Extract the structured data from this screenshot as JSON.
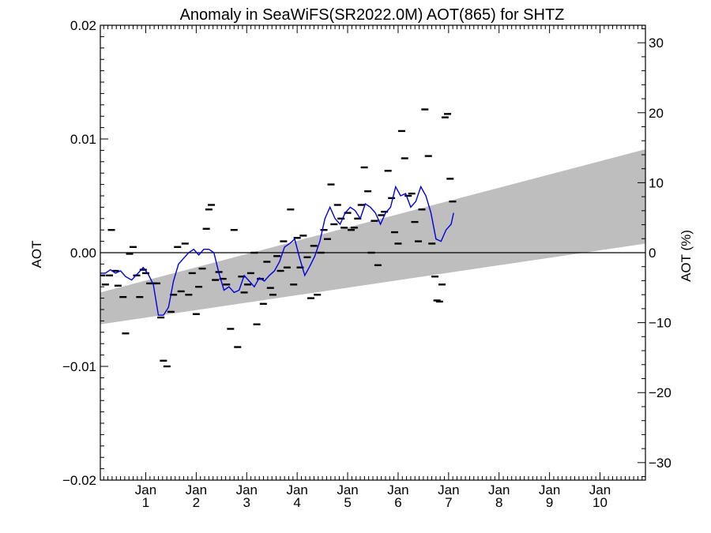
{
  "chart_data": {
    "type": "scatter",
    "title": "Anomaly in SeaWiFS(SR2022.0M) AOT(865) for SHTZ",
    "ylabel": "AOT",
    "ylabel_right": "AOT (%)",
    "xlabel": "",
    "xlim": [
      0.1,
      10.9
    ],
    "ylim": [
      -0.02,
      0.02
    ],
    "ylim_right": [
      -32.5,
      32.5
    ],
    "yticks": [
      -0.02,
      -0.01,
      0.0,
      0.01,
      0.02
    ],
    "ytick_labels": [
      "−0.02",
      "−0.01",
      "0.00",
      "0.01",
      "0.02"
    ],
    "yticks_right": [
      -30,
      -20,
      -10,
      0,
      10,
      20,
      30
    ],
    "ytick_labels_right": [
      "−30",
      "−20",
      "−10",
      "0",
      "10",
      "20",
      "30"
    ],
    "xticks": [
      {
        "x": 1,
        "line1": "Jan",
        "line2": "1"
      },
      {
        "x": 2,
        "line1": "Jan",
        "line2": "2"
      },
      {
        "x": 3,
        "line1": "Jan",
        "line2": "3"
      },
      {
        "x": 4,
        "line1": "Jan",
        "line2": "4"
      },
      {
        "x": 5,
        "line1": "Jan",
        "line2": "5"
      },
      {
        "x": 6,
        "line1": "Jan",
        "line2": "6"
      },
      {
        "x": 7,
        "line1": "Jan",
        "line2": "7"
      },
      {
        "x": 8,
        "line1": "Jan",
        "line2": "8"
      },
      {
        "x": 9,
        "line1": "Jan",
        "line2": "9"
      },
      {
        "x": 10,
        "line1": "Jan",
        "line2": "10"
      }
    ],
    "zero_line": 0.0,
    "band": {
      "color": "#bebebe",
      "x": [
        0.1,
        10.9
      ],
      "lower": [
        -0.0063,
        0.0008
      ],
      "upper": [
        -0.0035,
        0.0091
      ]
    },
    "series": [
      {
        "style": "markers",
        "color": "#000000",
        "points": [
          [
            0.13,
            -0.002
          ],
          [
            0.2,
            -0.0028
          ],
          [
            0.28,
            -0.002
          ],
          [
            0.32,
            0.002
          ],
          [
            0.4,
            -0.0016
          ],
          [
            0.45,
            -0.0029
          ],
          [
            0.55,
            -0.0039
          ],
          [
            0.6,
            -0.0071
          ],
          [
            0.68,
            -0.0001
          ],
          [
            0.75,
            0.0005
          ],
          [
            0.82,
            -0.002
          ],
          [
            0.88,
            -0.0039
          ],
          [
            0.95,
            -0.0015
          ],
          [
            1.0,
            -0.0018
          ],
          [
            1.08,
            -0.0027
          ],
          [
            1.15,
            -0.0027
          ],
          [
            1.22,
            -0.0027
          ],
          [
            1.3,
            -0.0057
          ],
          [
            1.35,
            -0.0095
          ],
          [
            1.42,
            -0.01
          ],
          [
            1.5,
            -0.0052
          ],
          [
            1.55,
            -0.0037
          ],
          [
            1.63,
            0.0005
          ],
          [
            1.7,
            -0.0034
          ],
          [
            1.78,
            0.0008
          ],
          [
            1.85,
            -0.0037
          ],
          [
            1.92,
            -0.0018
          ],
          [
            2.0,
            -0.0054
          ],
          [
            2.05,
            -0.003
          ],
          [
            2.12,
            -0.0014
          ],
          [
            2.2,
            0.0021
          ],
          [
            2.25,
            0.0038
          ],
          [
            2.3,
            0.0042
          ],
          [
            2.38,
            -0.0024
          ],
          [
            2.45,
            -0.0017
          ],
          [
            2.53,
            -0.0023
          ],
          [
            2.6,
            -0.0028
          ],
          [
            2.68,
            -0.0067
          ],
          [
            2.75,
            0.002
          ],
          [
            2.82,
            -0.0083
          ],
          [
            2.9,
            -0.0021
          ],
          [
            2.95,
            -0.0035
          ],
          [
            3.02,
            -0.0028
          ],
          [
            3.08,
            -0.0018
          ],
          [
            3.15,
            0.0
          ],
          [
            3.2,
            -0.0063
          ],
          [
            3.27,
            -0.0023
          ],
          [
            3.33,
            -0.0045
          ],
          [
            3.4,
            -0.0008
          ],
          [
            3.47,
            -0.0031
          ],
          [
            3.52,
            -0.0037
          ],
          [
            3.6,
            -0.0003
          ],
          [
            3.67,
            -0.0016
          ],
          [
            3.73,
            0.001
          ],
          [
            3.8,
            -0.0013
          ],
          [
            3.87,
            0.0038
          ],
          [
            3.93,
            -0.0028
          ],
          [
            4.0,
            0.0013
          ],
          [
            4.06,
            -0.0013
          ],
          [
            4.12,
            0.0015
          ],
          [
            4.2,
            -0.0004
          ],
          [
            4.27,
            -0.004
          ],
          [
            4.33,
            0.0006
          ],
          [
            4.4,
            -0.0037
          ],
          [
            4.47,
            0.0
          ],
          [
            4.53,
            0.002
          ],
          [
            4.6,
            0.0012
          ],
          [
            4.67,
            0.006
          ],
          [
            4.73,
            0.0025
          ],
          [
            4.8,
            0.0042
          ],
          [
            4.87,
            0.003
          ],
          [
            4.93,
            0.0022
          ],
          [
            5.0,
            0.0035
          ],
          [
            5.07,
            0.002
          ],
          [
            5.13,
            0.0022
          ],
          [
            5.2,
            0.003
          ],
          [
            5.27,
            0.0042
          ],
          [
            5.33,
            0.0075
          ],
          [
            5.4,
            0.0054
          ],
          [
            5.47,
            0.0
          ],
          [
            5.53,
            0.0028
          ],
          [
            5.6,
            -0.0011
          ],
          [
            5.67,
            0.0033
          ],
          [
            5.73,
            0.0036
          ],
          [
            5.8,
            0.0072
          ],
          [
            5.87,
            0.0048
          ],
          [
            5.93,
            0.0018
          ],
          [
            6.0,
            0.0008
          ],
          [
            6.07,
            0.0107
          ],
          [
            6.13,
            0.0083
          ],
          [
            6.2,
            0.005
          ],
          [
            6.27,
            0.0052
          ],
          [
            6.33,
            0.0027
          ],
          [
            6.4,
            0.001
          ],
          [
            6.47,
            0.0038
          ],
          [
            6.53,
            0.0126
          ],
          [
            6.6,
            0.0085
          ],
          [
            6.67,
            0.0008
          ],
          [
            6.73,
            -0.0021
          ],
          [
            6.77,
            -0.0042
          ],
          [
            6.82,
            -0.0043
          ],
          [
            6.87,
            -0.0028
          ],
          [
            6.93,
            0.0119
          ],
          [
            6.98,
            0.0122
          ],
          [
            7.03,
            0.0065
          ],
          [
            7.08,
            0.0045
          ]
        ]
      },
      {
        "style": "line",
        "color": "#0000dd",
        "points": [
          [
            0.1,
            -0.0018
          ],
          [
            0.2,
            -0.0018
          ],
          [
            0.3,
            -0.0015
          ],
          [
            0.4,
            -0.0018
          ],
          [
            0.5,
            -0.0016
          ],
          [
            0.6,
            -0.0021
          ],
          [
            0.72,
            -0.0024
          ],
          [
            0.85,
            -0.0018
          ],
          [
            0.95,
            -0.0013
          ],
          [
            1.05,
            -0.0019
          ],
          [
            1.15,
            -0.0028
          ],
          [
            1.25,
            -0.0055
          ],
          [
            1.35,
            -0.0055
          ],
          [
            1.45,
            -0.0048
          ],
          [
            1.55,
            -0.0025
          ],
          [
            1.65,
            -0.001
          ],
          [
            1.75,
            -0.0005
          ],
          [
            1.85,
            0.0
          ],
          [
            1.95,
            0.0003
          ],
          [
            2.05,
            -0.0002
          ],
          [
            2.15,
            0.0003
          ],
          [
            2.25,
            0.0003
          ],
          [
            2.35,
            0.0
          ],
          [
            2.45,
            -0.0018
          ],
          [
            2.55,
            -0.0033
          ],
          [
            2.65,
            -0.003
          ],
          [
            2.75,
            -0.0035
          ],
          [
            2.85,
            -0.0033
          ],
          [
            2.95,
            -0.002
          ],
          [
            3.05,
            -0.0025
          ],
          [
            3.15,
            -0.003
          ],
          [
            3.25,
            -0.0022
          ],
          [
            3.35,
            -0.0025
          ],
          [
            3.45,
            -0.002
          ],
          [
            3.55,
            -0.0016
          ],
          [
            3.65,
            -0.0008
          ],
          [
            3.75,
            0.0005
          ],
          [
            3.85,
            0.0008
          ],
          [
            3.95,
            0.0012
          ],
          [
            4.05,
            -0.0005
          ],
          [
            4.15,
            -0.002
          ],
          [
            4.25,
            -0.0012
          ],
          [
            4.35,
            -0.0003
          ],
          [
            4.45,
            0.001
          ],
          [
            4.55,
            0.003
          ],
          [
            4.65,
            0.004
          ],
          [
            4.75,
            0.003
          ],
          [
            4.85,
            0.0025
          ],
          [
            4.95,
            0.0035
          ],
          [
            5.05,
            0.004
          ],
          [
            5.15,
            0.0037
          ],
          [
            5.25,
            0.003
          ],
          [
            5.35,
            0.0043
          ],
          [
            5.45,
            0.004
          ],
          [
            5.55,
            0.0035
          ],
          [
            5.65,
            0.0025
          ],
          [
            5.75,
            0.0035
          ],
          [
            5.85,
            0.004
          ],
          [
            5.95,
            0.0058
          ],
          [
            6.05,
            0.005
          ],
          [
            6.15,
            0.0052
          ],
          [
            6.25,
            0.004
          ],
          [
            6.35,
            0.0045
          ],
          [
            6.45,
            0.0058
          ],
          [
            6.55,
            0.005
          ],
          [
            6.65,
            0.0035
          ],
          [
            6.75,
            0.0012
          ],
          [
            6.85,
            0.001
          ],
          [
            6.95,
            0.002
          ],
          [
            7.05,
            0.0025
          ],
          [
            7.1,
            0.0035
          ]
        ]
      }
    ]
  }
}
